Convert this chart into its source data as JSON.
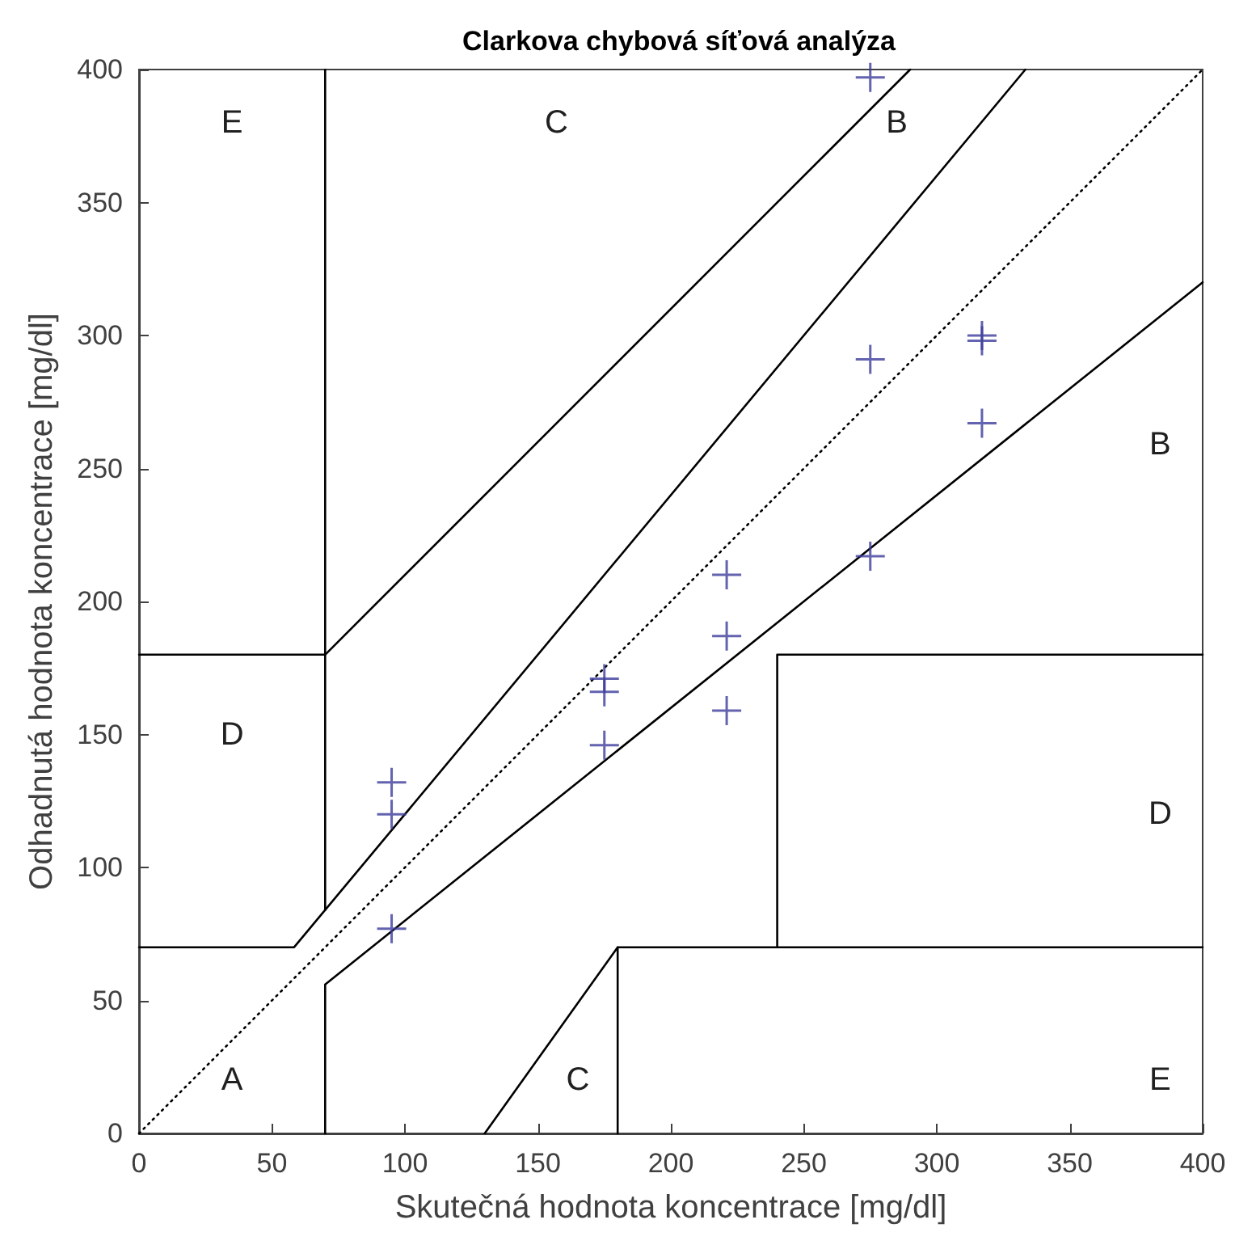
{
  "chart_data": {
    "type": "scatter",
    "title": "Clarkova chybová síťová analýza",
    "xlabel": "Skutečná hodnota koncentrace [mg/dl]",
    "ylabel": "Odhadnutá hodnota koncentrace [mg/dl]",
    "xlim": [
      0,
      400
    ],
    "ylim": [
      0,
      400
    ],
    "xticks": [
      0,
      50,
      100,
      150,
      200,
      250,
      300,
      350,
      400
    ],
    "yticks": [
      0,
      50,
      100,
      150,
      200,
      250,
      300,
      350,
      400
    ],
    "grid": false,
    "series": [
      {
        "marker": "cross",
        "color": "#3c3c9c",
        "x": [
          95,
          95,
          95,
          175,
          175,
          175,
          221,
          221,
          221,
          275,
          275,
          275,
          317,
          317,
          317
        ],
        "values": [
          132,
          120,
          77,
          171,
          166,
          146,
          210,
          187,
          159,
          397,
          291,
          217,
          300,
          298,
          267
        ]
      },
      {
        "type": "line",
        "marker": "none",
        "line_style": "dotted",
        "color": "#000000",
        "x": [
          0,
          400
        ],
        "values": [
          0,
          400
        ]
      },
      {
        "type": "line",
        "marker": "none",
        "line_style": "solid",
        "color": "#000000",
        "x": [
          0,
          58.33,
          333.33
        ],
        "values": [
          70,
          70,
          400
        ]
      },
      {
        "type": "line",
        "marker": "none",
        "line_style": "solid",
        "color": "#000000",
        "x": [
          70,
          70,
          400
        ],
        "values": [
          0,
          56,
          320
        ]
      },
      {
        "type": "line",
        "marker": "none",
        "line_style": "solid",
        "color": "#000000",
        "x": [
          70,
          70
        ],
        "values": [
          84,
          400
        ]
      },
      {
        "type": "line",
        "marker": "none",
        "line_style": "solid",
        "color": "#000000",
        "x": [
          0,
          70,
          290
        ],
        "values": [
          180,
          180,
          400
        ]
      },
      {
        "type": "line",
        "marker": "none",
        "line_style": "solid",
        "color": "#000000",
        "x": [
          130,
          180,
          400
        ],
        "values": [
          0,
          70,
          70
        ]
      },
      {
        "type": "line",
        "marker": "none",
        "line_style": "solid",
        "color": "#000000",
        "x": [
          180,
          180
        ],
        "values": [
          0,
          70
        ]
      },
      {
        "type": "line",
        "marker": "none",
        "line_style": "solid",
        "color": "#000000",
        "x": [
          240,
          240,
          400
        ],
        "values": [
          70,
          180,
          180
        ]
      }
    ],
    "annotations": [
      "E",
      "C",
      "B",
      "B",
      "D",
      "D",
      "A",
      "C",
      "E"
    ]
  }
}
